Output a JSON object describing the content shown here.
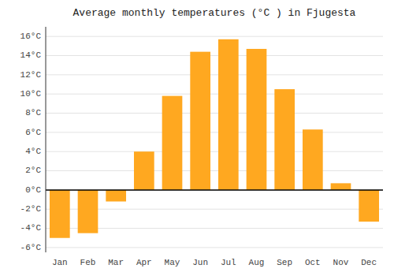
{
  "chart_data": {
    "type": "bar",
    "title": "Average monthly temperatures (°C ) in Fjugesta",
    "categories": [
      "Jan",
      "Feb",
      "Mar",
      "Apr",
      "May",
      "Jun",
      "Jul",
      "Aug",
      "Sep",
      "Oct",
      "Nov",
      "Dec"
    ],
    "values": [
      -5.0,
      -4.5,
      -1.2,
      4.0,
      9.8,
      14.4,
      15.7,
      14.7,
      10.5,
      6.3,
      0.7,
      -3.3
    ],
    "color": "#FFA820",
    "ylim": [
      -6.5,
      17
    ],
    "yticks": [
      {
        "value": -6,
        "label": "-6°C"
      },
      {
        "value": -4,
        "label": "-4°C"
      },
      {
        "value": -2,
        "label": "-2°C"
      },
      {
        "value": 0,
        "label": "0°C"
      },
      {
        "value": 2,
        "label": "2°C"
      },
      {
        "value": 4,
        "label": "4°C"
      },
      {
        "value": 6,
        "label": "6°C"
      },
      {
        "value": 8,
        "label": "8°C"
      },
      {
        "value": 10,
        "label": "10°C"
      },
      {
        "value": 12,
        "label": "12°C"
      },
      {
        "value": 14,
        "label": "14°C"
      },
      {
        "value": 16,
        "label": "16°C"
      }
    ],
    "grid": true
  }
}
